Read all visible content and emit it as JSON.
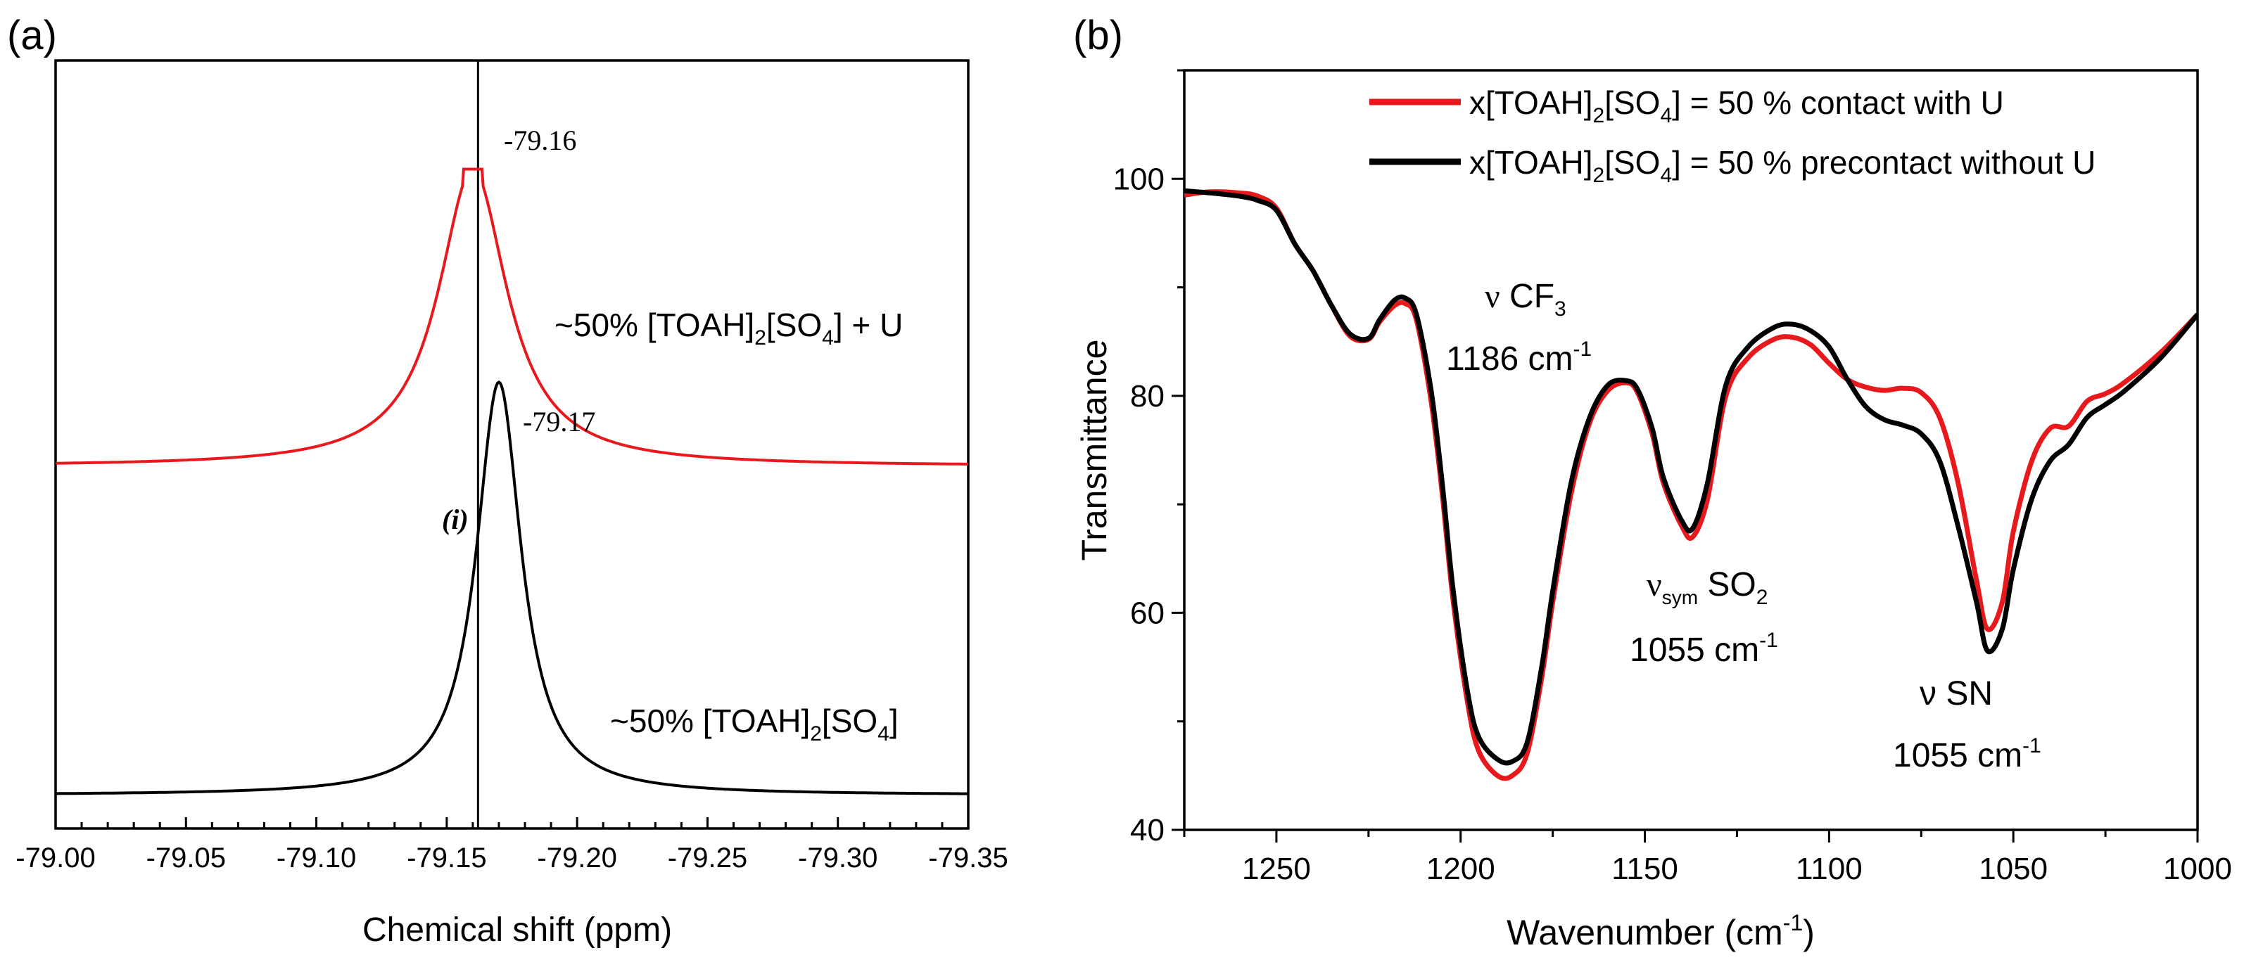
{
  "panel_a": {
    "label": "(a)",
    "xlabel": "Chemical shift (ppm)",
    "series_red_label": {
      "main": "~50% [TOAH]",
      "sub1": "2",
      "mid": "[SO",
      "sub2": "4",
      "end": "] + U"
    },
    "series_black_label": {
      "main": "~50% [TOAH]",
      "sub1": "2",
      "mid": "[SO",
      "sub2": "4",
      "end": "]"
    },
    "peak_red_label": "-79.16",
    "peak_black_label": "-79.17",
    "marker_label": "(i)"
  },
  "panel_b": {
    "label": "(b)",
    "xlabel_main": "Wavenumber (cm",
    "xlabel_sup": "-1",
    "xlabel_end": ")",
    "ylabel": "Transmittance",
    "legend": [
      {
        "pre": "x[TOAH]",
        "sub1": "2",
        "mid": "[SO",
        "sub2": "4",
        "end": "] = 50 % contact with U",
        "color": "#e8191c"
      },
      {
        "pre": "x[TOAH]",
        "sub1": "2",
        "mid": "[SO",
        "sub2": "4",
        "end": "] = 50 % precontact without U",
        "color": "#000000"
      }
    ],
    "ann_cf3": {
      "nu": "ν",
      "name": "CF",
      "sub": "3",
      "wn": "1186 cm",
      "sup": "-1"
    },
    "ann_so2": {
      "nu": "ν",
      "nusub": "sym",
      "name": "SO",
      "sub": "2",
      "wn": "1055 cm",
      "sup": "-1"
    },
    "ann_sn": {
      "name": "ν SN",
      "wn": "1055 cm",
      "sup": "-1"
    }
  },
  "chart_data": [
    {
      "type": "line",
      "title": "(a)",
      "xlabel": "Chemical shift (ppm)",
      "ylabel": "",
      "xlim": [
        -79.0,
        -79.35
      ],
      "ylim": [
        0,
        1.06
      ],
      "xticks": [
        -79.0,
        -79.05,
        -79.1,
        -79.15,
        -79.2,
        -79.25,
        -79.3,
        -79.35
      ],
      "xtick_labels": [
        "-79.00",
        "-79.05",
        "-79.10",
        "-79.15",
        "-79.20",
        "-79.25",
        "-79.30",
        "-79.35"
      ],
      "vline": -79.162,
      "series": [
        {
          "name": "~50% [TOAH]2[SO4] + U",
          "color": "#e8191c",
          "peak": -79.16,
          "hwhm": 0.016,
          "baseline": 0.5,
          "height": 0.41
        },
        {
          "name": "~50% [TOAH]2[SO4]",
          "color": "#000000",
          "peak": -79.17,
          "hwhm": 0.0105,
          "baseline": 0.046,
          "height": 0.57
        }
      ]
    },
    {
      "type": "line",
      "title": "(b)",
      "xlabel": "Wavenumber (cm-1)",
      "ylabel": "Transmittance",
      "xlim": [
        1275,
        1000
      ],
      "ylim": [
        40,
        110
      ],
      "xticks": [
        1250,
        1200,
        1150,
        1100,
        1050,
        1000
      ],
      "yticks": [
        40,
        60,
        80,
        100
      ],
      "series": [
        {
          "name": "x[TOAH]2[SO4] = 50 % contact with U",
          "color": "#e8191c",
          "x": [
            1275,
            1268,
            1260,
            1255,
            1250,
            1245,
            1240,
            1235,
            1230,
            1225,
            1222,
            1218,
            1215,
            1212,
            1208,
            1205,
            1202,
            1198,
            1195,
            1190,
            1186,
            1182,
            1178,
            1175,
            1170,
            1165,
            1160,
            1155,
            1152,
            1148,
            1145,
            1140,
            1137,
            1133,
            1128,
            1122,
            1115,
            1110,
            1105,
            1100,
            1095,
            1090,
            1085,
            1080,
            1075,
            1070,
            1065,
            1060,
            1057,
            1053,
            1050,
            1045,
            1040,
            1035,
            1030,
            1025,
            1020,
            1010,
            1000
          ],
          "y": [
            98.5,
            98.8,
            98.7,
            98.4,
            97.3,
            94.0,
            91.5,
            88.3,
            85.5,
            85.2,
            86.8,
            88.3,
            88.5,
            87.0,
            79.5,
            71.0,
            61.0,
            51.5,
            47.2,
            45.0,
            45.0,
            47.0,
            54.0,
            61.0,
            71.0,
            77.5,
            80.5,
            81.2,
            80.3,
            76.5,
            72.0,
            68.0,
            67.0,
            70.5,
            80.0,
            83.5,
            85.2,
            85.4,
            84.7,
            83.0,
            81.5,
            80.8,
            80.5,
            80.7,
            80.3,
            78.0,
            72.0,
            63.0,
            58.5,
            61.0,
            67.5,
            74.0,
            77.0,
            77.2,
            79.5,
            80.2,
            81.2,
            84.0,
            87.5
          ]
        },
        {
          "name": "x[TOAH]2[SO4] = 50 % precontact without U",
          "color": "#000000",
          "x": [
            1275,
            1268,
            1260,
            1255,
            1250,
            1245,
            1240,
            1235,
            1230,
            1225,
            1222,
            1218,
            1215,
            1212,
            1208,
            1205,
            1202,
            1198,
            1195,
            1190,
            1186,
            1182,
            1178,
            1175,
            1170,
            1165,
            1160,
            1155,
            1152,
            1148,
            1145,
            1140,
            1137,
            1133,
            1128,
            1122,
            1115,
            1110,
            1105,
            1100,
            1095,
            1090,
            1085,
            1080,
            1075,
            1070,
            1065,
            1060,
            1057,
            1053,
            1050,
            1045,
            1040,
            1035,
            1030,
            1025,
            1020,
            1010,
            1000
          ],
          "y": [
            98.9,
            98.7,
            98.4,
            98.0,
            97.1,
            94.0,
            91.5,
            88.3,
            85.7,
            85.3,
            87.0,
            88.8,
            89.0,
            87.5,
            80.5,
            72.0,
            62.0,
            52.5,
            48.5,
            46.5,
            46.3,
            48.0,
            55.0,
            62.0,
            72.0,
            78.0,
            81.0,
            81.4,
            80.6,
            77.0,
            72.5,
            68.5,
            67.8,
            72.0,
            81.0,
            84.5,
            86.3,
            86.6,
            86.0,
            84.5,
            81.5,
            79.0,
            77.8,
            77.3,
            76.5,
            74.0,
            68.0,
            61.0,
            56.5,
            58.5,
            64.0,
            70.5,
            74.0,
            75.5,
            78.0,
            79.2,
            80.4,
            83.5,
            87.5
          ]
        }
      ]
    }
  ]
}
